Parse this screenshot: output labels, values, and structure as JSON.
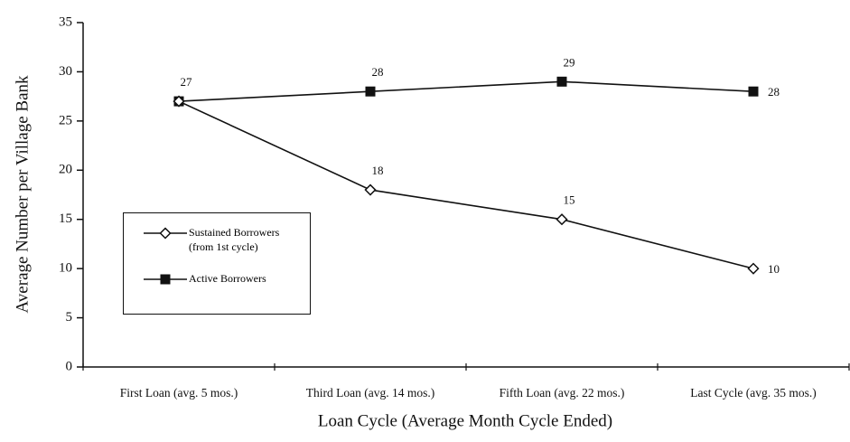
{
  "chart_data": {
    "type": "line",
    "x_label": "Loan Cycle (Average Month Cycle Ended)",
    "y_label": "Average Number per Village Bank",
    "categories": [
      "First Loan (avg. 5 mos.)",
      "Third Loan (avg. 14 mos.)",
      "Fifth Loan (avg. 22 mos.)",
      "Last Cycle (avg. 35 mos.)"
    ],
    "series": [
      {
        "name": "Sustained Borrowers (from 1st cycle)",
        "color": "#111111",
        "marker": "diamond",
        "values": [
          27,
          18,
          15,
          10
        ]
      },
      {
        "name": "Active Borrowers",
        "color": "#111111",
        "marker": "square",
        "values": [
          27,
          28,
          29,
          28
        ]
      }
    ],
    "ylim": [
      0,
      35
    ],
    "yticks": [
      0,
      5,
      10,
      15,
      20,
      25,
      30,
      35
    ],
    "legend": "lower left"
  }
}
